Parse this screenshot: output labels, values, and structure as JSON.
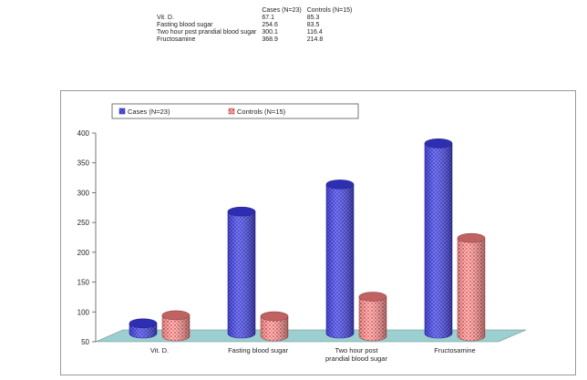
{
  "table": {
    "headers": [
      "",
      "Cases (N=23)",
      "Controls (N=15)"
    ],
    "rows": [
      {
        "label": "Vit. D.",
        "cases": "67.1",
        "controls": "85.3"
      },
      {
        "label": "Fasting blood sugar",
        "cases": "254.6",
        "controls": "83.5"
      },
      {
        "label": "Two hour post prandial blood sugar",
        "cases": "300.1",
        "controls": "116.4"
      },
      {
        "label": "Fructosamine",
        "cases": "368.9",
        "controls": "214.8"
      }
    ]
  },
  "chart_data": {
    "type": "bar",
    "title": "",
    "xlabel": "",
    "ylabel": "",
    "categories": [
      "Vit. D.",
      "Fasting blood sugar",
      "Two hour post prandial blood sugar",
      "Fructosamine"
    ],
    "category_lines": [
      [
        "Vit. D."
      ],
      [
        "Fasting blood sugar"
      ],
      [
        "Two hour post",
        "prandial blood sugar"
      ],
      [
        "Fructosamine"
      ]
    ],
    "series": [
      {
        "name": "Cases (N=23)",
        "values": [
          67.1,
          254.6,
          300.1,
          368.9
        ],
        "color": "#3a3ae0"
      },
      {
        "name": "Controls (N=15)",
        "values": [
          85.3,
          83.5,
          116.4,
          214.8
        ],
        "color": "#f07a7a"
      }
    ],
    "ylim": [
      50,
      400
    ],
    "yticks": [
      50,
      100,
      150,
      200,
      250,
      300,
      350,
      400
    ],
    "legend_position": "top",
    "floor_color": "#9ccfcf",
    "style": "3d-cylinder"
  }
}
